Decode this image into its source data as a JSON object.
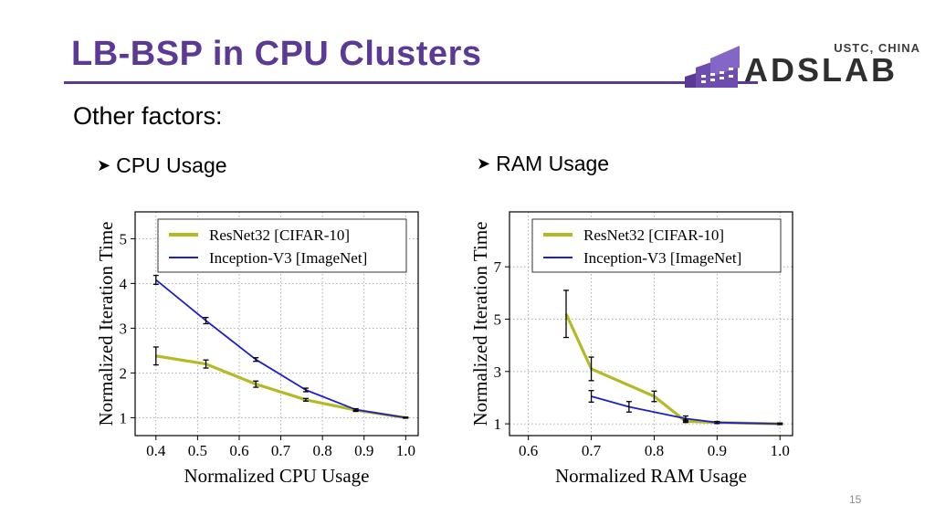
{
  "slide": {
    "title": "LB-BSP in CPU Clusters",
    "subtitle": "Other factors:",
    "bullets": [
      "CPU Usage",
      "RAM Usage"
    ],
    "page_number": "15",
    "colors": {
      "title": "#5b3a96",
      "resnet": "#b5b923",
      "inception": "#1f1fc7"
    },
    "logo": {
      "sub": "USTC, CHINA",
      "main": "ADSLAB"
    }
  },
  "chart_data": [
    {
      "type": "line",
      "xlabel": "Normalized CPU Usage",
      "ylabel": "Normalized Iteration Time",
      "xlim": [
        0.35,
        1.03
      ],
      "ylim": [
        0.6,
        5.6
      ],
      "xticks": [
        0.4,
        0.5,
        0.6,
        0.7,
        0.8,
        0.9,
        1.0
      ],
      "yticks": [
        1,
        2,
        3,
        4,
        5
      ],
      "xtick_labels": [
        "0.4",
        "0.5",
        "0.6",
        "0.7",
        "0.8",
        "0.9",
        "1.0"
      ],
      "ytick_labels": [
        "1",
        "2",
        "3",
        "4",
        "5"
      ],
      "grid": true,
      "legend": "top",
      "series": [
        {
          "name": "ResNet32 [CIFAR-10]",
          "x": [
            0.4,
            0.52,
            0.64,
            0.76,
            0.88,
            1.0
          ],
          "values": [
            2.38,
            2.2,
            1.75,
            1.4,
            1.17,
            1.0
          ],
          "err": [
            0.2,
            0.09,
            0.07,
            0.03,
            0.03,
            0.01
          ]
        },
        {
          "name": "Inception-V3 [ImageNet]",
          "x": [
            0.4,
            0.52,
            0.64,
            0.76,
            0.88,
            1.0
          ],
          "values": [
            4.08,
            3.17,
            2.3,
            1.62,
            1.18,
            1.0
          ],
          "err": [
            0.1,
            0.07,
            0.04,
            0.04,
            0.02,
            0.01
          ]
        }
      ]
    },
    {
      "type": "line",
      "xlabel": "Normalized RAM Usage",
      "ylabel": "Normalized Iteration Time",
      "xlim": [
        0.57,
        1.02
      ],
      "ylim": [
        0.55,
        9.1
      ],
      "xticks": [
        0.6,
        0.7,
        0.8,
        0.9,
        1.0
      ],
      "yticks": [
        1,
        3,
        5,
        7
      ],
      "xtick_labels": [
        "0.6",
        "0.7",
        "0.8",
        "0.9",
        "1.0"
      ],
      "ytick_labels": [
        "1",
        "3",
        "5",
        "7"
      ],
      "grid": true,
      "legend": "top",
      "series": [
        {
          "name": "ResNet32 [CIFAR-10]",
          "x": [
            0.66,
            0.7,
            0.8,
            0.85,
            0.9,
            1.0
          ],
          "values": [
            5.2,
            3.1,
            2.05,
            1.1,
            1.05,
            1.0
          ],
          "err": [
            0.9,
            0.45,
            0.2,
            0.05,
            0.03,
            0.02
          ]
        },
        {
          "name": "Inception-V3 [ImageNet]",
          "x": [
            0.7,
            0.76,
            0.85,
            0.9,
            1.0
          ],
          "values": [
            2.05,
            1.65,
            1.2,
            1.05,
            1.0
          ],
          "err": [
            0.22,
            0.2,
            0.1,
            0.04,
            0.03
          ]
        }
      ]
    }
  ]
}
